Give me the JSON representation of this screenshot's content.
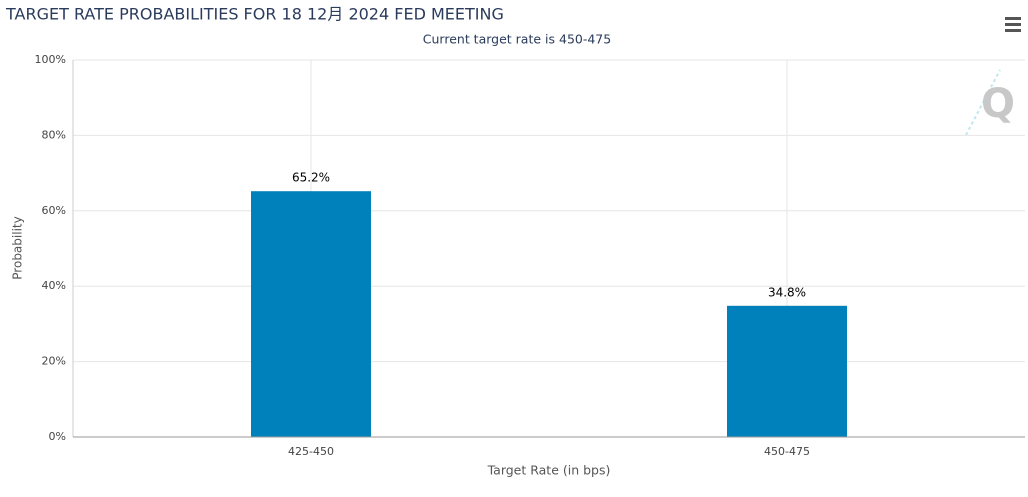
{
  "chart_data": {
    "type": "bar",
    "title": "TARGET RATE PROBABILITIES FOR 18 12月 2024 FED MEETING",
    "subtitle": "Current target rate is 450-475",
    "x_label": "Target Rate (in bps)",
    "y_label": "Probability",
    "categories": [
      "425-450",
      "450-475"
    ],
    "values": [
      65.2,
      34.8
    ],
    "value_labels": [
      "65.2%",
      "34.8%"
    ],
    "color": "#0081bb",
    "ylim": [
      0,
      100
    ],
    "yticks": [
      {
        "value": 0,
        "label": "0%"
      },
      {
        "value": 20,
        "label": "20%"
      },
      {
        "value": 40,
        "label": "40%"
      },
      {
        "value": 60,
        "label": "60%"
      },
      {
        "value": 80,
        "label": "80%"
      },
      {
        "value": 100,
        "label": "100%"
      }
    ],
    "grid": true
  }
}
